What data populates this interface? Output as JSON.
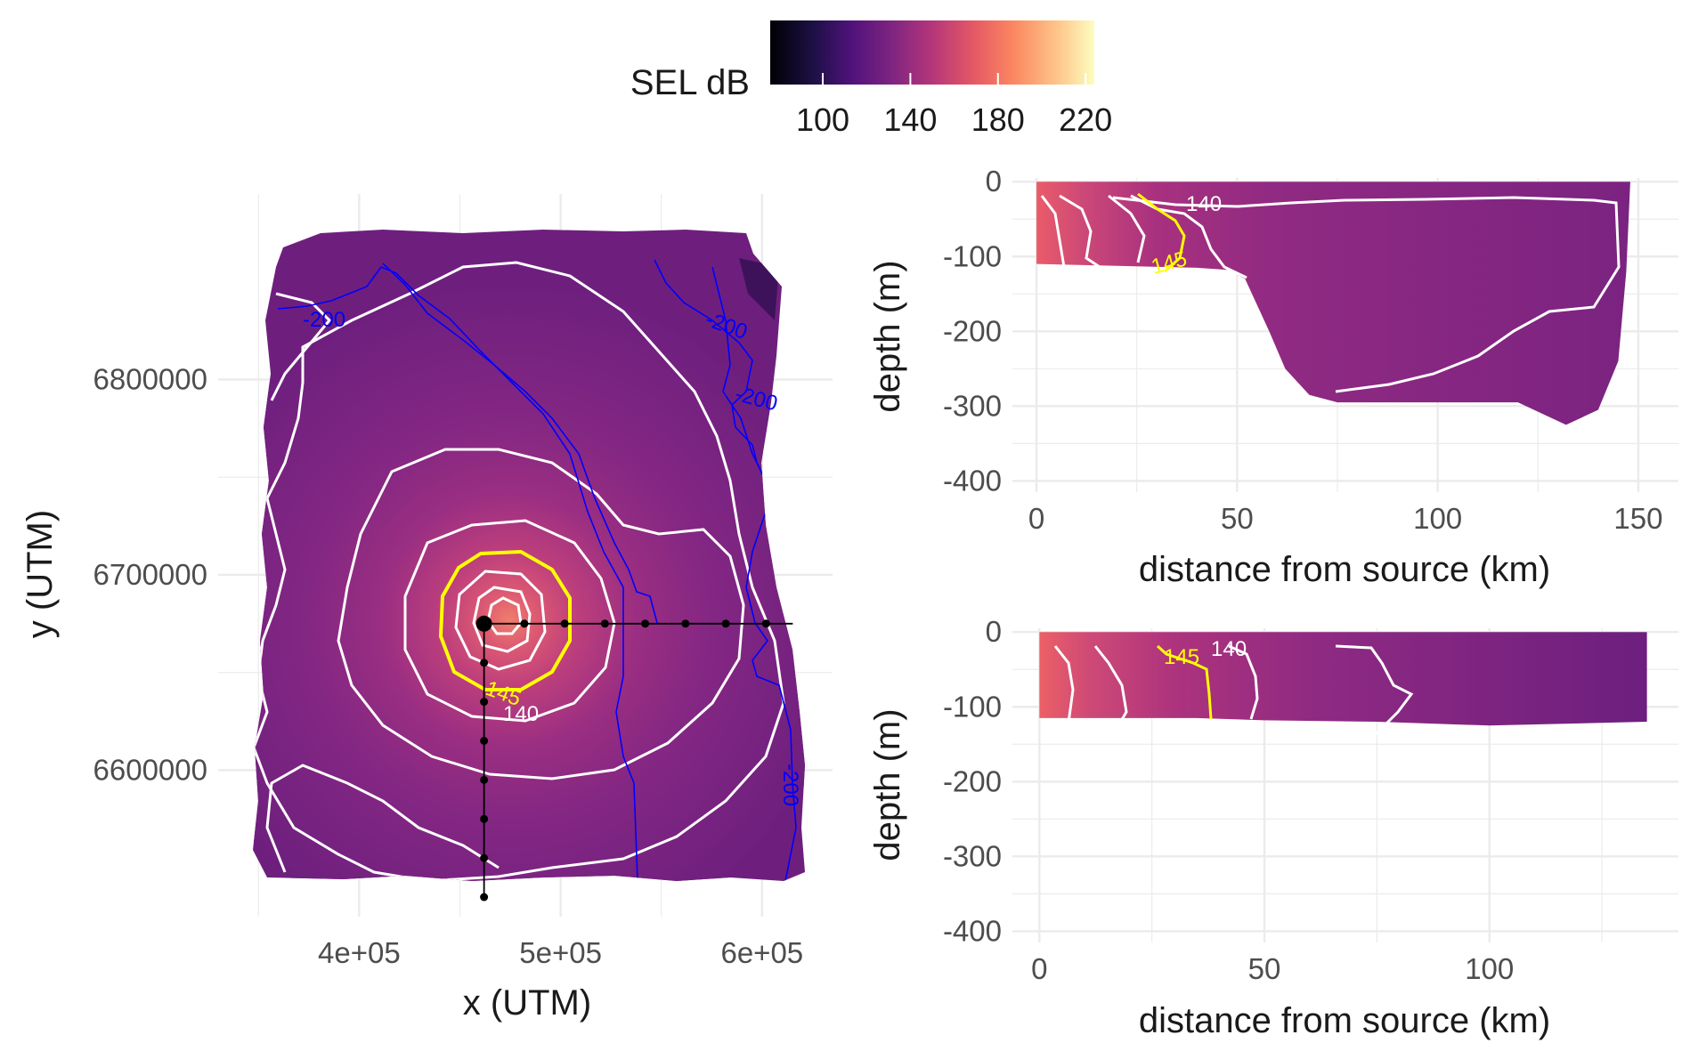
{
  "colors": {
    "grid": "#ebebeb",
    "tick_text": "#4d4d4d",
    "axis_title": "#1a1a1a",
    "contour": "#ffffff",
    "highlight_contour": "#ffff00",
    "bathymetry": "#0000ff",
    "transect": "#000000"
  },
  "legend": {
    "title": "SEL dB",
    "colormap": "magma",
    "ticks": [
      "100",
      "140",
      "180",
      "220"
    ],
    "range": [
      76,
      224
    ]
  },
  "chart_data": [
    {
      "id": "map",
      "type": "heatmap",
      "xlabel": "x (UTM)",
      "ylabel": "y (UTM)",
      "xlim": [
        330000,
        635000
      ],
      "ylim": [
        6525000,
        6895000
      ],
      "xticks": [
        {
          "v": 400000,
          "label": "4e+05"
        },
        {
          "v": 500000,
          "label": "5e+05"
        },
        {
          "v": 600000,
          "label": "6e+05"
        }
      ],
      "yticks": [
        {
          "v": 6600000,
          "label": "6600000"
        },
        {
          "v": 6700000,
          "label": "6700000"
        },
        {
          "v": 6800000,
          "label": "6800000"
        }
      ],
      "source": {
        "x": 462000,
        "y": 6675000
      },
      "sel_contours": [
        {
          "label": "145",
          "color": "yellow",
          "radius_km": 35
        },
        {
          "label": "140",
          "color": "white",
          "radius_km": 48
        }
      ],
      "bathymetry_labels": [
        "-200",
        "-200",
        "-200",
        "-200"
      ],
      "transects": [
        {
          "direction": "east",
          "points_x": [
            462000,
            482000,
            502000,
            522000,
            542000,
            562000,
            582000,
            602000
          ]
        },
        {
          "direction": "south",
          "points_y": [
            6675000,
            6655000,
            6635000,
            6615000,
            6595000,
            6575000,
            6555000,
            6535000
          ]
        }
      ]
    },
    {
      "id": "section-east",
      "type": "heatmap",
      "xlabel": "distance from source (km)",
      "ylabel": "depth (m)",
      "xlim": [
        -6,
        160
      ],
      "ylim": [
        -415,
        5
      ],
      "xticks": [
        {
          "v": 0,
          "label": "0"
        },
        {
          "v": 50,
          "label": "50"
        },
        {
          "v": 100,
          "label": "100"
        },
        {
          "v": 150,
          "label": "150"
        }
      ],
      "yticks": [
        {
          "v": 0,
          "label": "0"
        },
        {
          "v": -100,
          "label": "-100"
        },
        {
          "v": -200,
          "label": "-200"
        },
        {
          "v": -300,
          "label": "-300"
        },
        {
          "v": -400,
          "label": "-400"
        }
      ],
      "seabed": [
        [
          0,
          -110
        ],
        [
          40,
          -115
        ],
        [
          48,
          -118
        ],
        [
          52,
          -130
        ],
        [
          58,
          -200
        ],
        [
          62,
          -250
        ],
        [
          68,
          -285
        ],
        [
          75,
          -295
        ],
        [
          120,
          -295
        ],
        [
          128,
          -315
        ],
        [
          132,
          -325
        ],
        [
          140,
          -305
        ],
        [
          145,
          -240
        ],
        [
          147,
          -120
        ],
        [
          148,
          0
        ]
      ],
      "contour_labels": [
        "140",
        "145"
      ],
      "contour_145_km": 36,
      "contour_140_km": 50
    },
    {
      "id": "section-south",
      "type": "heatmap",
      "xlabel": "distance from source (km)",
      "ylabel": "depth (m)",
      "xlim": [
        -6,
        142
      ],
      "ylim": [
        -415,
        5
      ],
      "xticks": [
        {
          "v": 0,
          "label": "0"
        },
        {
          "v": 50,
          "label": "50"
        },
        {
          "v": 100,
          "label": "100"
        }
      ],
      "yticks": [
        {
          "v": 0,
          "label": "0"
        },
        {
          "v": -100,
          "label": "-100"
        },
        {
          "v": -200,
          "label": "-200"
        },
        {
          "v": -300,
          "label": "-300"
        },
        {
          "v": -400,
          "label": "-400"
        }
      ],
      "seabed": [
        [
          0,
          -115
        ],
        [
          35,
          -115
        ],
        [
          50,
          -118
        ],
        [
          75,
          -120
        ],
        [
          100,
          -125
        ],
        [
          135,
          -120
        ],
        [
          135,
          0
        ]
      ],
      "contour_labels": [
        "145",
        "140"
      ],
      "contour_145_km": 38,
      "contour_140_km": 50
    }
  ]
}
